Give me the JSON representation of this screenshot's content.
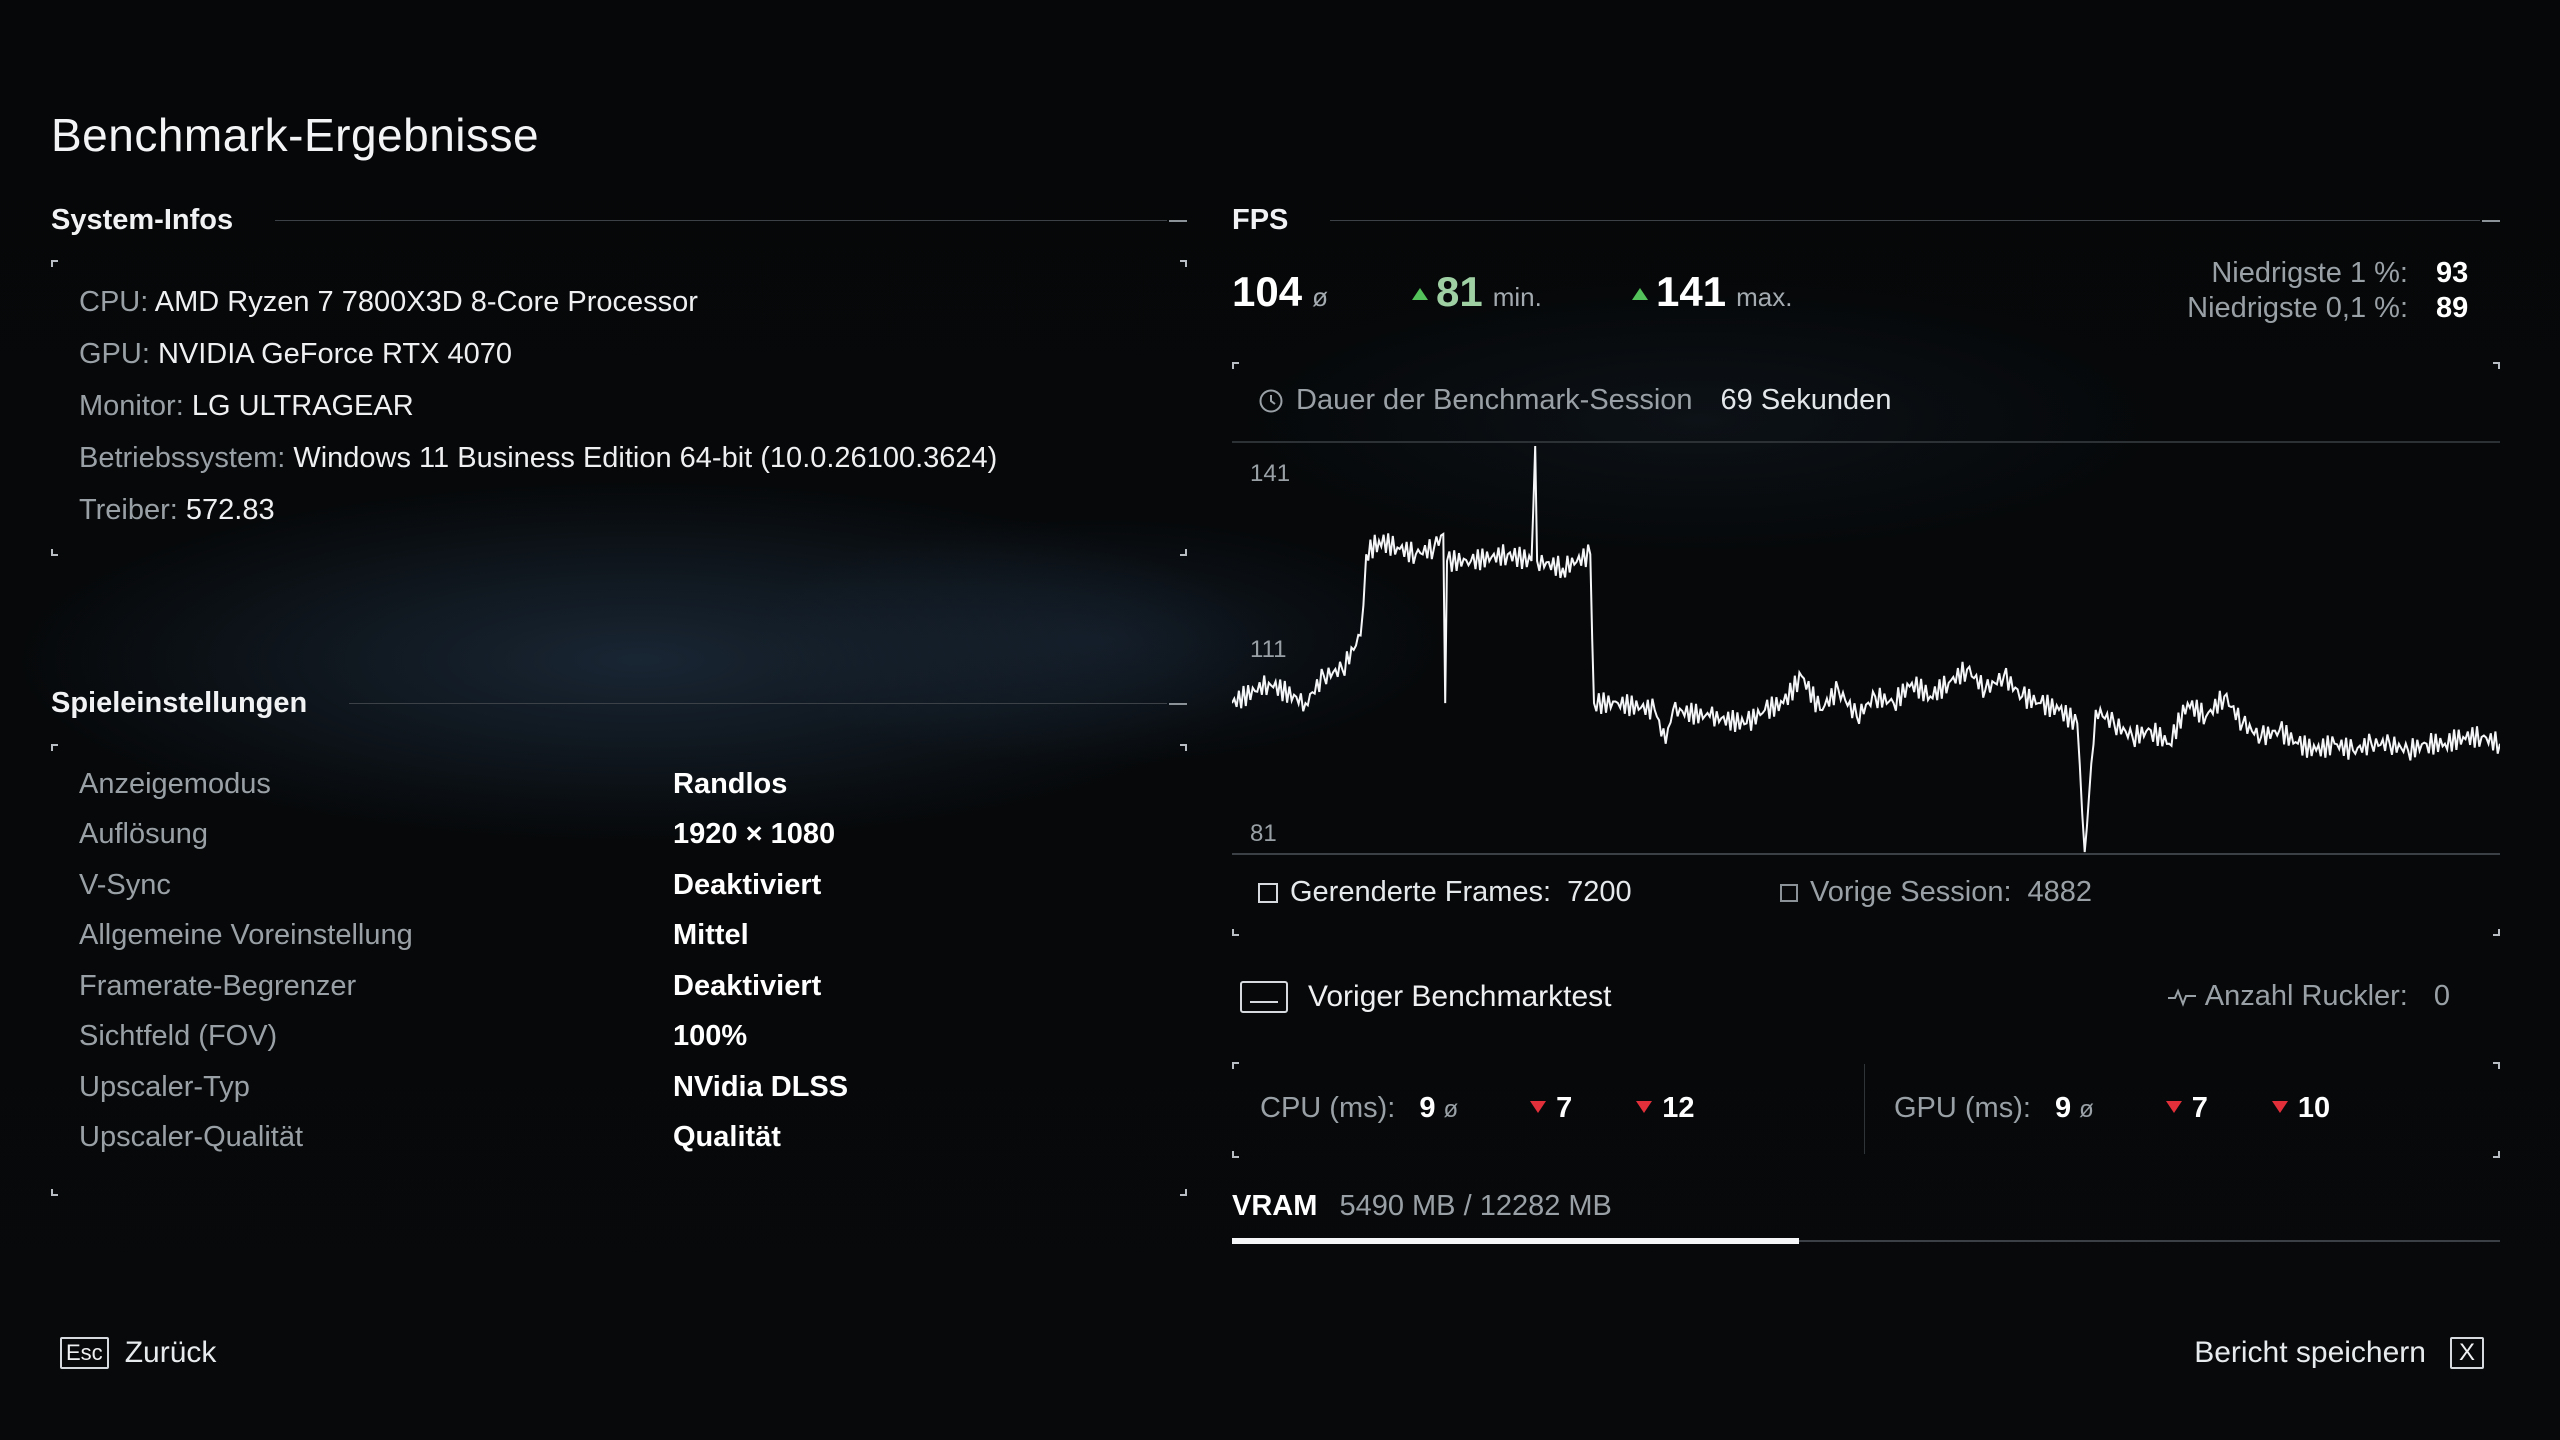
{
  "title": "Benchmark-Ergebnisse",
  "system_info": {
    "heading": "System-Infos",
    "items": [
      {
        "key": "CPU:",
        "value": "AMD Ryzen 7 7800X3D 8-Core Processor"
      },
      {
        "key": "GPU:",
        "value": "NVIDIA GeForce RTX 4070"
      },
      {
        "key": "Monitor:",
        "value": "LG ULTRAGEAR"
      },
      {
        "key": "Betriebssystem:",
        "value": "Windows 11 Business Edition 64-bit (10.0.26100.3624)"
      },
      {
        "key": "Treiber:",
        "value": "572.83"
      }
    ]
  },
  "game_settings": {
    "heading": "Spieleinstellungen",
    "items": [
      {
        "key": "Anzeigemodus",
        "value": "Randlos"
      },
      {
        "key": "Auflösung",
        "value": "1920 × 1080"
      },
      {
        "key": "V-Sync",
        "value": "Deaktiviert"
      },
      {
        "key": "Allgemeine Voreinstellung",
        "value": "Mittel"
      },
      {
        "key": "Framerate-Begrenzer",
        "value": "Deaktiviert"
      },
      {
        "key": "Sichtfeld (FOV)",
        "value": "100%"
      },
      {
        "key": "Upscaler-Typ",
        "value": "NVidia DLSS"
      },
      {
        "key": "Upscaler-Qualität",
        "value": "Qualität"
      }
    ]
  },
  "fps": {
    "heading": "FPS",
    "avg": "104",
    "avg_unit": "ø",
    "min": "81",
    "min_unit": "min.",
    "max": "141",
    "max_unit": "max.",
    "low1_label": "Niedrigste 1 %:",
    "low1_value": "93",
    "low01_label": "Niedrigste 0,1 %:",
    "low01_value": "89",
    "session_label": "Dauer der Benchmark-Session",
    "session_value": "69 Sekunden",
    "frames_label": "Gerenderte Frames:",
    "frames_value": "7200",
    "prev_session_label": "Vorige Session:",
    "prev_session_value": "4882"
  },
  "chart_data": {
    "type": "line",
    "y_ticks": [
      "141",
      "111",
      "81"
    ],
    "ylim": [
      81,
      141
    ],
    "x_unit_hint": "seconds (0–69)",
    "series": [
      {
        "values": [
          [
            0,
            103
          ],
          [
            2,
            106
          ],
          [
            4,
            103
          ],
          [
            5,
            107
          ],
          [
            6,
            108
          ],
          [
            7,
            113
          ],
          [
            7.3,
            125
          ],
          [
            8,
            127
          ],
          [
            9,
            126
          ],
          [
            10,
            125
          ],
          [
            11,
            126
          ],
          [
            11.5,
            128
          ],
          [
            11.6,
            103
          ],
          [
            11.7,
            124
          ],
          [
            13,
            124
          ],
          [
            15,
            125
          ],
          [
            16.3,
            124
          ],
          [
            16.5,
            141
          ],
          [
            16.6,
            124
          ],
          [
            18,
            123
          ],
          [
            19.5,
            125
          ],
          [
            19.7,
            103
          ],
          [
            21,
            103
          ],
          [
            23,
            102
          ],
          [
            23.6,
            97
          ],
          [
            24,
            102
          ],
          [
            26,
            101
          ],
          [
            28,
            100
          ],
          [
            29,
            102
          ],
          [
            30,
            103
          ],
          [
            31,
            107
          ],
          [
            32,
            102
          ],
          [
            33,
            105
          ],
          [
            34,
            101
          ],
          [
            35,
            104
          ],
          [
            36,
            103
          ],
          [
            37,
            106
          ],
          [
            38,
            104
          ],
          [
            39,
            106
          ],
          [
            40,
            108
          ],
          [
            41,
            105
          ],
          [
            42,
            107
          ],
          [
            43,
            104
          ],
          [
            44,
            103
          ],
          [
            45,
            102
          ],
          [
            46,
            100
          ],
          [
            46.4,
            81
          ],
          [
            47,
            102
          ],
          [
            48,
            100
          ],
          [
            49,
            98
          ],
          [
            50,
            99
          ],
          [
            51,
            97
          ],
          [
            52,
            103
          ],
          [
            53,
            101
          ],
          [
            54,
            104
          ],
          [
            55,
            100
          ],
          [
            56,
            98
          ],
          [
            57,
            99
          ],
          [
            58,
            97
          ],
          [
            59,
            96
          ],
          [
            60,
            97
          ],
          [
            61,
            96
          ],
          [
            62,
            97
          ],
          [
            63,
            97
          ],
          [
            64,
            96
          ],
          [
            65,
            97
          ],
          [
            66,
            97
          ],
          [
            67,
            98
          ],
          [
            68,
            98
          ],
          [
            69,
            97
          ]
        ]
      }
    ]
  },
  "previous_benchmark": {
    "label": "Voriger Benchmarktest",
    "stutter_label": "Anzahl Ruckler:",
    "stutter_value": "0",
    "cpu_label": "CPU (ms):",
    "cpu_avg": "9",
    "cpu_min": "7",
    "cpu_max": "12",
    "gpu_label": "GPU (ms):",
    "gpu_avg": "9",
    "gpu_min": "7",
    "gpu_max": "10",
    "avg_unit": "ø"
  },
  "vram": {
    "label": "VRAM",
    "value": "5490 MB / 12282 MB",
    "used_fraction": 0.447
  },
  "footer": {
    "back_key": "Esc",
    "back_label": "Zurück",
    "save_label": "Bericht speichern",
    "save_key": "X"
  },
  "colors": {
    "up_arrow": "#54c25a",
    "down_arrow": "#e2303a",
    "accent_white": "#ffffff"
  }
}
